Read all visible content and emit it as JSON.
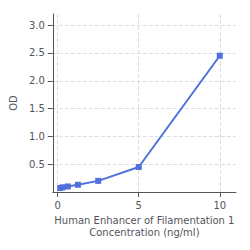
{
  "chart_data": {
    "type": "line",
    "x": [
      0.156,
      0.313,
      0.625,
      1.25,
      2.5,
      5,
      10
    ],
    "values": [
      0.071,
      0.085,
      0.1,
      0.13,
      0.2,
      0.45,
      2.45
    ],
    "xlabel": "Human Enhancer of Filamentation 1\nConcentration (ng/ml)",
    "ylabel": "OD",
    "xlim": [
      -0.3,
      11
    ],
    "ylim": [
      0,
      3.2
    ],
    "xticks": [
      0,
      5,
      10
    ],
    "yticks": [
      0.5,
      {
        "value": 1.0,
        "label": "1.0"
      },
      1.5,
      {
        "value": 2.0,
        "label": "2.0"
      },
      2.5,
      {
        "value": 3.0,
        "label": "3.0"
      }
    ],
    "grid": true,
    "marker": "square"
  }
}
